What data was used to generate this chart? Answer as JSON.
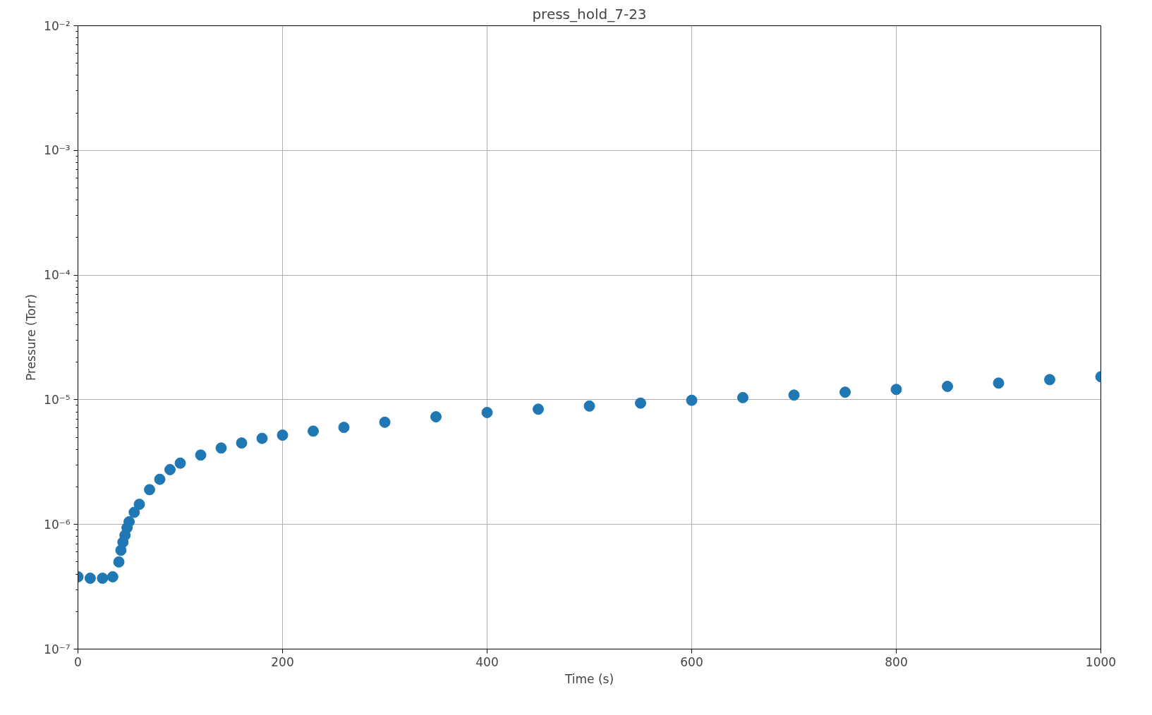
{
  "chart_data": {
    "type": "scatter",
    "title": "press_hold_7-23",
    "xlabel": "Time (s)",
    "ylabel": "Pressure (Torr)",
    "x": [
      0,
      12,
      24,
      34,
      40,
      42,
      44,
      46,
      48,
      50,
      55,
      60,
      70,
      80,
      90,
      100,
      120,
      140,
      160,
      180,
      200,
      230,
      260,
      300,
      350,
      400,
      450,
      500,
      550,
      600,
      650,
      700,
      750,
      800,
      850,
      900,
      950,
      1000
    ],
    "series": [
      {
        "color": "#1f77b4",
        "values": [
          3.8e-07,
          3.7e-07,
          3.7e-07,
          3.8e-07,
          5e-07,
          6.2e-07,
          7.2e-07,
          8.2e-07,
          9.4e-07,
          1.05e-06,
          1.25e-06,
          1.45e-06,
          1.9e-06,
          2.3e-06,
          2.75e-06,
          3.1e-06,
          3.6e-06,
          4.1e-06,
          4.5e-06,
          4.9e-06,
          5.2e-06,
          5.6e-06,
          6e-06,
          6.6e-06,
          7.3e-06,
          7.9e-06,
          8.4e-06,
          8.9e-06,
          9.4e-06,
          9.9e-06,
          1.04e-05,
          1.09e-05,
          1.15e-05,
          1.21e-05,
          1.28e-05,
          1.36e-05,
          1.45e-05,
          1.53e-05
        ]
      }
    ],
    "xlim": [
      0,
      1000
    ],
    "xticks": [
      0,
      200,
      400,
      600,
      800,
      1000
    ],
    "ylim": [
      1e-07,
      0.01
    ],
    "yticks": [
      {
        "value": 1e-07,
        "label": "10⁻⁷"
      },
      {
        "value": 1e-06,
        "label": "10⁻⁶"
      },
      {
        "value": 1e-05,
        "label": "10⁻⁵"
      },
      {
        "value": 0.0001,
        "label": "10⁻⁴"
      },
      {
        "value": 0.001,
        "label": "10⁻³"
      },
      {
        "value": 0.01,
        "label": "10⁻²"
      }
    ],
    "log": "y",
    "grid": true,
    "marker": "circle"
  }
}
